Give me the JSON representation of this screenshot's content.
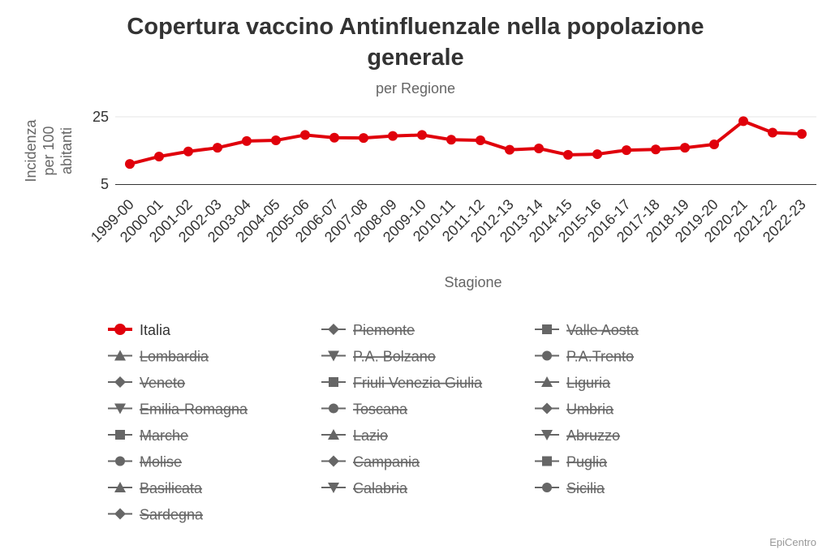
{
  "title": "Copertura vaccino Antinfluenzale nella popolazione generale",
  "title_lines": [
    "Copertura vaccino Antinfluenzale nella popolazione",
    "generale"
  ],
  "subtitle": "per Regione",
  "credit": "EpiCentro",
  "colors": {
    "active_series": "#e0000b",
    "inactive_legend": "#666666",
    "axis_line": "#333333",
    "grid": "#e6e6e6"
  },
  "chart_data": {
    "type": "line",
    "xlabel": "Stagione",
    "ylabel_lines": [
      "Incidenza",
      "per 100",
      "abitanti"
    ],
    "yticks": [
      5,
      25
    ],
    "ylim": [
      5,
      25
    ],
    "grid": true,
    "legend_placement": "bottom",
    "categories": [
      "1999-00",
      "2000-01",
      "2001-02",
      "2002-03",
      "2003-04",
      "2004-05",
      "2005-06",
      "2006-07",
      "2007-08",
      "2008-09",
      "2009-10",
      "2010-11",
      "2011-12",
      "2012-13",
      "2013-14",
      "2014-15",
      "2015-16",
      "2016-17",
      "2017-18",
      "2018-19",
      "2019-20",
      "2020-21",
      "2021-22",
      "2022-23"
    ],
    "series": [
      {
        "name": "Italia",
        "visible": true,
        "marker": "circle",
        "values": [
          11.0,
          13.2,
          14.7,
          15.8,
          17.8,
          18.0,
          19.6,
          18.8,
          18.7,
          19.3,
          19.6,
          18.2,
          18.0,
          15.2,
          15.6,
          13.7,
          13.9,
          15.1,
          15.3,
          15.8,
          16.8,
          23.7,
          20.3,
          19.9
        ]
      }
    ],
    "legend": [
      {
        "name": "Italia",
        "marker": "circle",
        "visible": true
      },
      {
        "name": "Piemonte",
        "marker": "diamond",
        "visible": false
      },
      {
        "name": "Valle Aosta",
        "marker": "square",
        "visible": false
      },
      {
        "name": "Lombardia",
        "marker": "triangle",
        "visible": false
      },
      {
        "name": "P.A. Bolzano",
        "marker": "triangle-down",
        "visible": false
      },
      {
        "name": "P.A.Trento",
        "marker": "circle",
        "visible": false
      },
      {
        "name": "Veneto",
        "marker": "diamond",
        "visible": false
      },
      {
        "name": "Friuli Venezia Giulia",
        "marker": "square",
        "visible": false
      },
      {
        "name": "Liguria",
        "marker": "triangle",
        "visible": false
      },
      {
        "name": "Emilia-Romagna",
        "marker": "triangle-down",
        "visible": false
      },
      {
        "name": "Toscana",
        "marker": "circle",
        "visible": false
      },
      {
        "name": "Umbria",
        "marker": "diamond",
        "visible": false
      },
      {
        "name": "Marche",
        "marker": "square",
        "visible": false
      },
      {
        "name": "Lazio",
        "marker": "triangle",
        "visible": false
      },
      {
        "name": "Abruzzo",
        "marker": "triangle-down",
        "visible": false
      },
      {
        "name": "Molise",
        "marker": "circle",
        "visible": false
      },
      {
        "name": "Campania",
        "marker": "diamond",
        "visible": false
      },
      {
        "name": "Puglia",
        "marker": "square",
        "visible": false
      },
      {
        "name": "Basilicata",
        "marker": "triangle",
        "visible": false
      },
      {
        "name": "Calabria",
        "marker": "triangle-down",
        "visible": false
      },
      {
        "name": "Sicilia",
        "marker": "circle",
        "visible": false
      },
      {
        "name": "Sardegna",
        "marker": "diamond",
        "visible": false
      }
    ]
  }
}
